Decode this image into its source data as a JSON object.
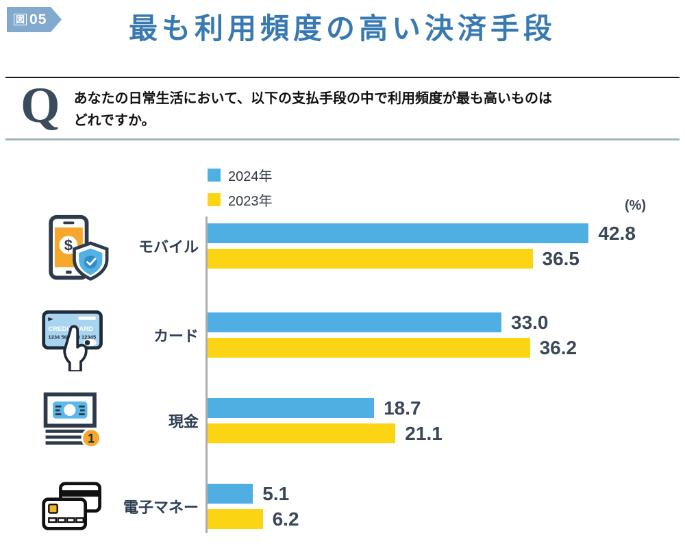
{
  "figure_badge": {
    "prefix": "図",
    "number": "05"
  },
  "header": {
    "title": "最も利用頻度の高い決済手段"
  },
  "question": {
    "mark": "Q",
    "line1": "あなたの日常生活において、以下の支払手段の中で利用頻度が最も高いものは",
    "line2": "どれですか。"
  },
  "legend": [
    {
      "label": "2024年",
      "color": "#4FAFE3"
    },
    {
      "label": "2023年",
      "color": "#FBD413"
    }
  ],
  "unit_label": "(%)",
  "chart_data": {
    "type": "bar",
    "orientation": "horizontal",
    "title": "最も利用頻度の高い決済手段",
    "unit": "%",
    "xlim": [
      0,
      50
    ],
    "categories": [
      "モバイル",
      "カード",
      "現金",
      "電子マネー"
    ],
    "series": [
      {
        "name": "2024年",
        "color": "#4FAFE3",
        "values": [
          42.8,
          33.0,
          18.7,
          5.1
        ]
      },
      {
        "name": "2023年",
        "color": "#FBD413",
        "values": [
          36.5,
          36.2,
          21.1,
          6.2
        ]
      }
    ],
    "value_labels": true,
    "legend_position": "top",
    "grid": false
  },
  "icons": {
    "mobile": {
      "name": "mobile-payment-shield-icon",
      "dollar": "$"
    },
    "card": {
      "name": "credit-card-hand-icon",
      "text1": "CREDIT CARD",
      "text2": "1234 5678 90 12345"
    },
    "cash": {
      "name": "banknote-stack-icon",
      "badge": "1"
    },
    "emoney": {
      "name": "emoney-cards-icon"
    }
  },
  "colors": {
    "title": "#3879B2",
    "badge": "#82A9CE",
    "bar_2024": "#4FAFE3",
    "bar_2023": "#FBD413",
    "value_label": "#3A4758",
    "category_label": "#2E3E52",
    "rule_top": "#1A1A1A",
    "rule_bottom": "#9FB3BD",
    "axis": "#ADADAD"
  }
}
